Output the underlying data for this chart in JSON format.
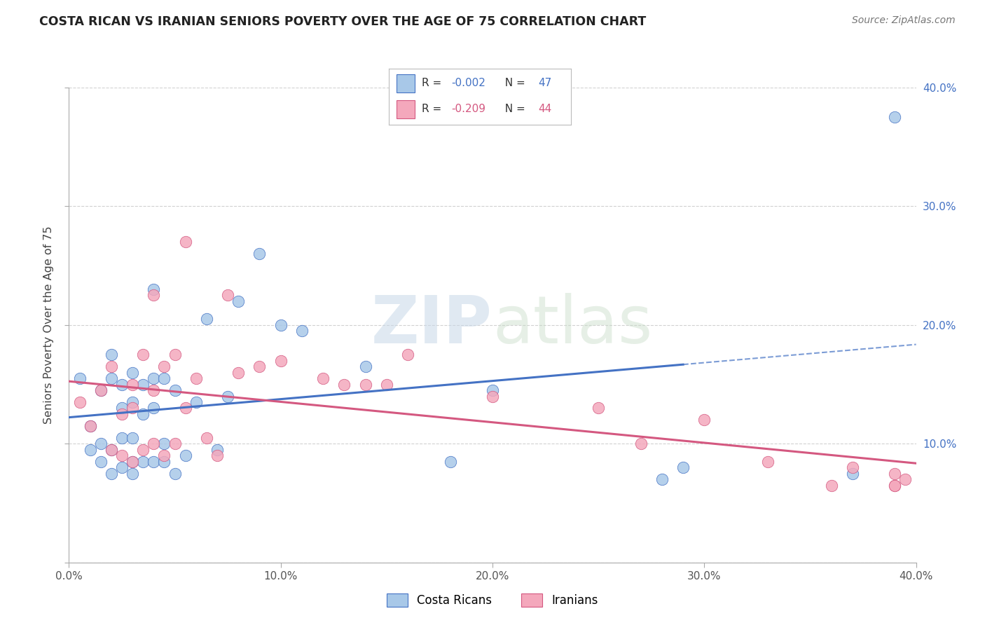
{
  "title": "COSTA RICAN VS IRANIAN SENIORS POVERTY OVER THE AGE OF 75 CORRELATION CHART",
  "source": "Source: ZipAtlas.com",
  "ylabel": "Seniors Poverty Over the Age of 75",
  "xlim": [
    0,
    0.4
  ],
  "ylim": [
    0,
    0.4
  ],
  "xticks": [
    0.0,
    0.1,
    0.2,
    0.3,
    0.4
  ],
  "yticks": [
    0.0,
    0.1,
    0.2,
    0.3,
    0.4
  ],
  "xticklabels": [
    "0.0%",
    "10.0%",
    "20.0%",
    "30.0%",
    "40.0%"
  ],
  "yticklabels_right": [
    "",
    "10.0%",
    "20.0%",
    "30.0%",
    "40.0%"
  ],
  "watermark_zip": "ZIP",
  "watermark_atlas": "atlas",
  "legend_r1": "-0.002",
  "legend_n1": "47",
  "legend_r2": "-0.209",
  "legend_n2": "44",
  "color_costa": "#a8c8e8",
  "color_iran": "#f4a8bc",
  "color_line_costa": "#4472c4",
  "color_line_iran": "#d45880",
  "bg_color": "#ffffff",
  "grid_color": "#cccccc",
  "title_color": "#222222",
  "label_color": "#444444",
  "tick_color_right": "#4472c4",
  "costa_x": [
    0.005,
    0.01,
    0.01,
    0.015,
    0.015,
    0.015,
    0.02,
    0.02,
    0.02,
    0.02,
    0.025,
    0.025,
    0.025,
    0.025,
    0.03,
    0.03,
    0.03,
    0.03,
    0.03,
    0.035,
    0.035,
    0.035,
    0.04,
    0.04,
    0.04,
    0.04,
    0.045,
    0.045,
    0.045,
    0.05,
    0.05,
    0.055,
    0.06,
    0.065,
    0.07,
    0.075,
    0.08,
    0.09,
    0.1,
    0.11,
    0.14,
    0.18,
    0.2,
    0.28,
    0.29,
    0.37,
    0.39
  ],
  "costa_y": [
    0.155,
    0.095,
    0.115,
    0.145,
    0.1,
    0.085,
    0.075,
    0.095,
    0.155,
    0.175,
    0.08,
    0.105,
    0.13,
    0.15,
    0.075,
    0.085,
    0.105,
    0.135,
    0.16,
    0.085,
    0.125,
    0.15,
    0.085,
    0.13,
    0.155,
    0.23,
    0.085,
    0.1,
    0.155,
    0.075,
    0.145,
    0.09,
    0.135,
    0.205,
    0.095,
    0.14,
    0.22,
    0.26,
    0.2,
    0.195,
    0.165,
    0.085,
    0.145,
    0.07,
    0.08,
    0.075,
    0.375
  ],
  "iran_x": [
    0.005,
    0.01,
    0.015,
    0.02,
    0.02,
    0.025,
    0.025,
    0.03,
    0.03,
    0.03,
    0.035,
    0.035,
    0.04,
    0.04,
    0.04,
    0.045,
    0.045,
    0.05,
    0.05,
    0.055,
    0.055,
    0.06,
    0.065,
    0.07,
    0.075,
    0.08,
    0.09,
    0.1,
    0.12,
    0.13,
    0.14,
    0.15,
    0.16,
    0.2,
    0.25,
    0.27,
    0.3,
    0.33,
    0.36,
    0.37,
    0.39,
    0.39,
    0.39,
    0.395
  ],
  "iran_y": [
    0.135,
    0.115,
    0.145,
    0.095,
    0.165,
    0.09,
    0.125,
    0.085,
    0.13,
    0.15,
    0.095,
    0.175,
    0.1,
    0.145,
    0.225,
    0.09,
    0.165,
    0.1,
    0.175,
    0.13,
    0.27,
    0.155,
    0.105,
    0.09,
    0.225,
    0.16,
    0.165,
    0.17,
    0.155,
    0.15,
    0.15,
    0.15,
    0.175,
    0.14,
    0.13,
    0.1,
    0.12,
    0.085,
    0.065,
    0.08,
    0.065,
    0.065,
    0.075,
    0.07
  ]
}
